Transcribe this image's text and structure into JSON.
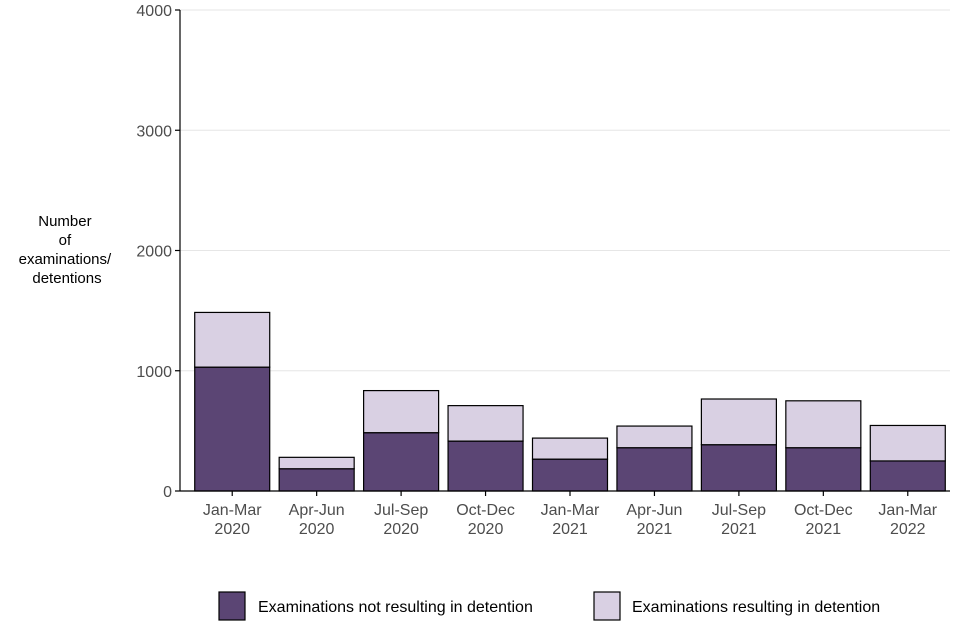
{
  "chart_data": {
    "type": "bar",
    "stacked": true,
    "title": "",
    "ylabel": "Number of examinations/ detentions",
    "ylabel_lines": [
      "Number",
      "of",
      "examinations/",
      "detentions"
    ],
    "xlabel": "",
    "ylim": [
      0,
      4000
    ],
    "yticks": [
      0,
      1000,
      2000,
      3000,
      4000
    ],
    "grid": true,
    "legend_position": "bottom",
    "categories": [
      [
        "Jan-Mar",
        "2020"
      ],
      [
        "Apr-Jun",
        "2020"
      ],
      [
        "Jul-Sep",
        "2020"
      ],
      [
        "Oct-Dec",
        "2020"
      ],
      [
        "Jan-Mar",
        "2021"
      ],
      [
        "Apr-Jun",
        "2021"
      ],
      [
        "Jul-Sep",
        "2021"
      ],
      [
        "Oct-Dec",
        "2021"
      ],
      [
        "Jan-Mar",
        "2022"
      ]
    ],
    "series": [
      {
        "name": "Examinations not resulting in detention",
        "color": "#5b4574",
        "values": [
          1030,
          185,
          485,
          415,
          265,
          360,
          385,
          360,
          250
        ]
      },
      {
        "name": "Examinations resulting in detention",
        "color": "#d9d0e3",
        "values": [
          455,
          95,
          350,
          295,
          175,
          180,
          380,
          390,
          295
        ]
      }
    ]
  }
}
